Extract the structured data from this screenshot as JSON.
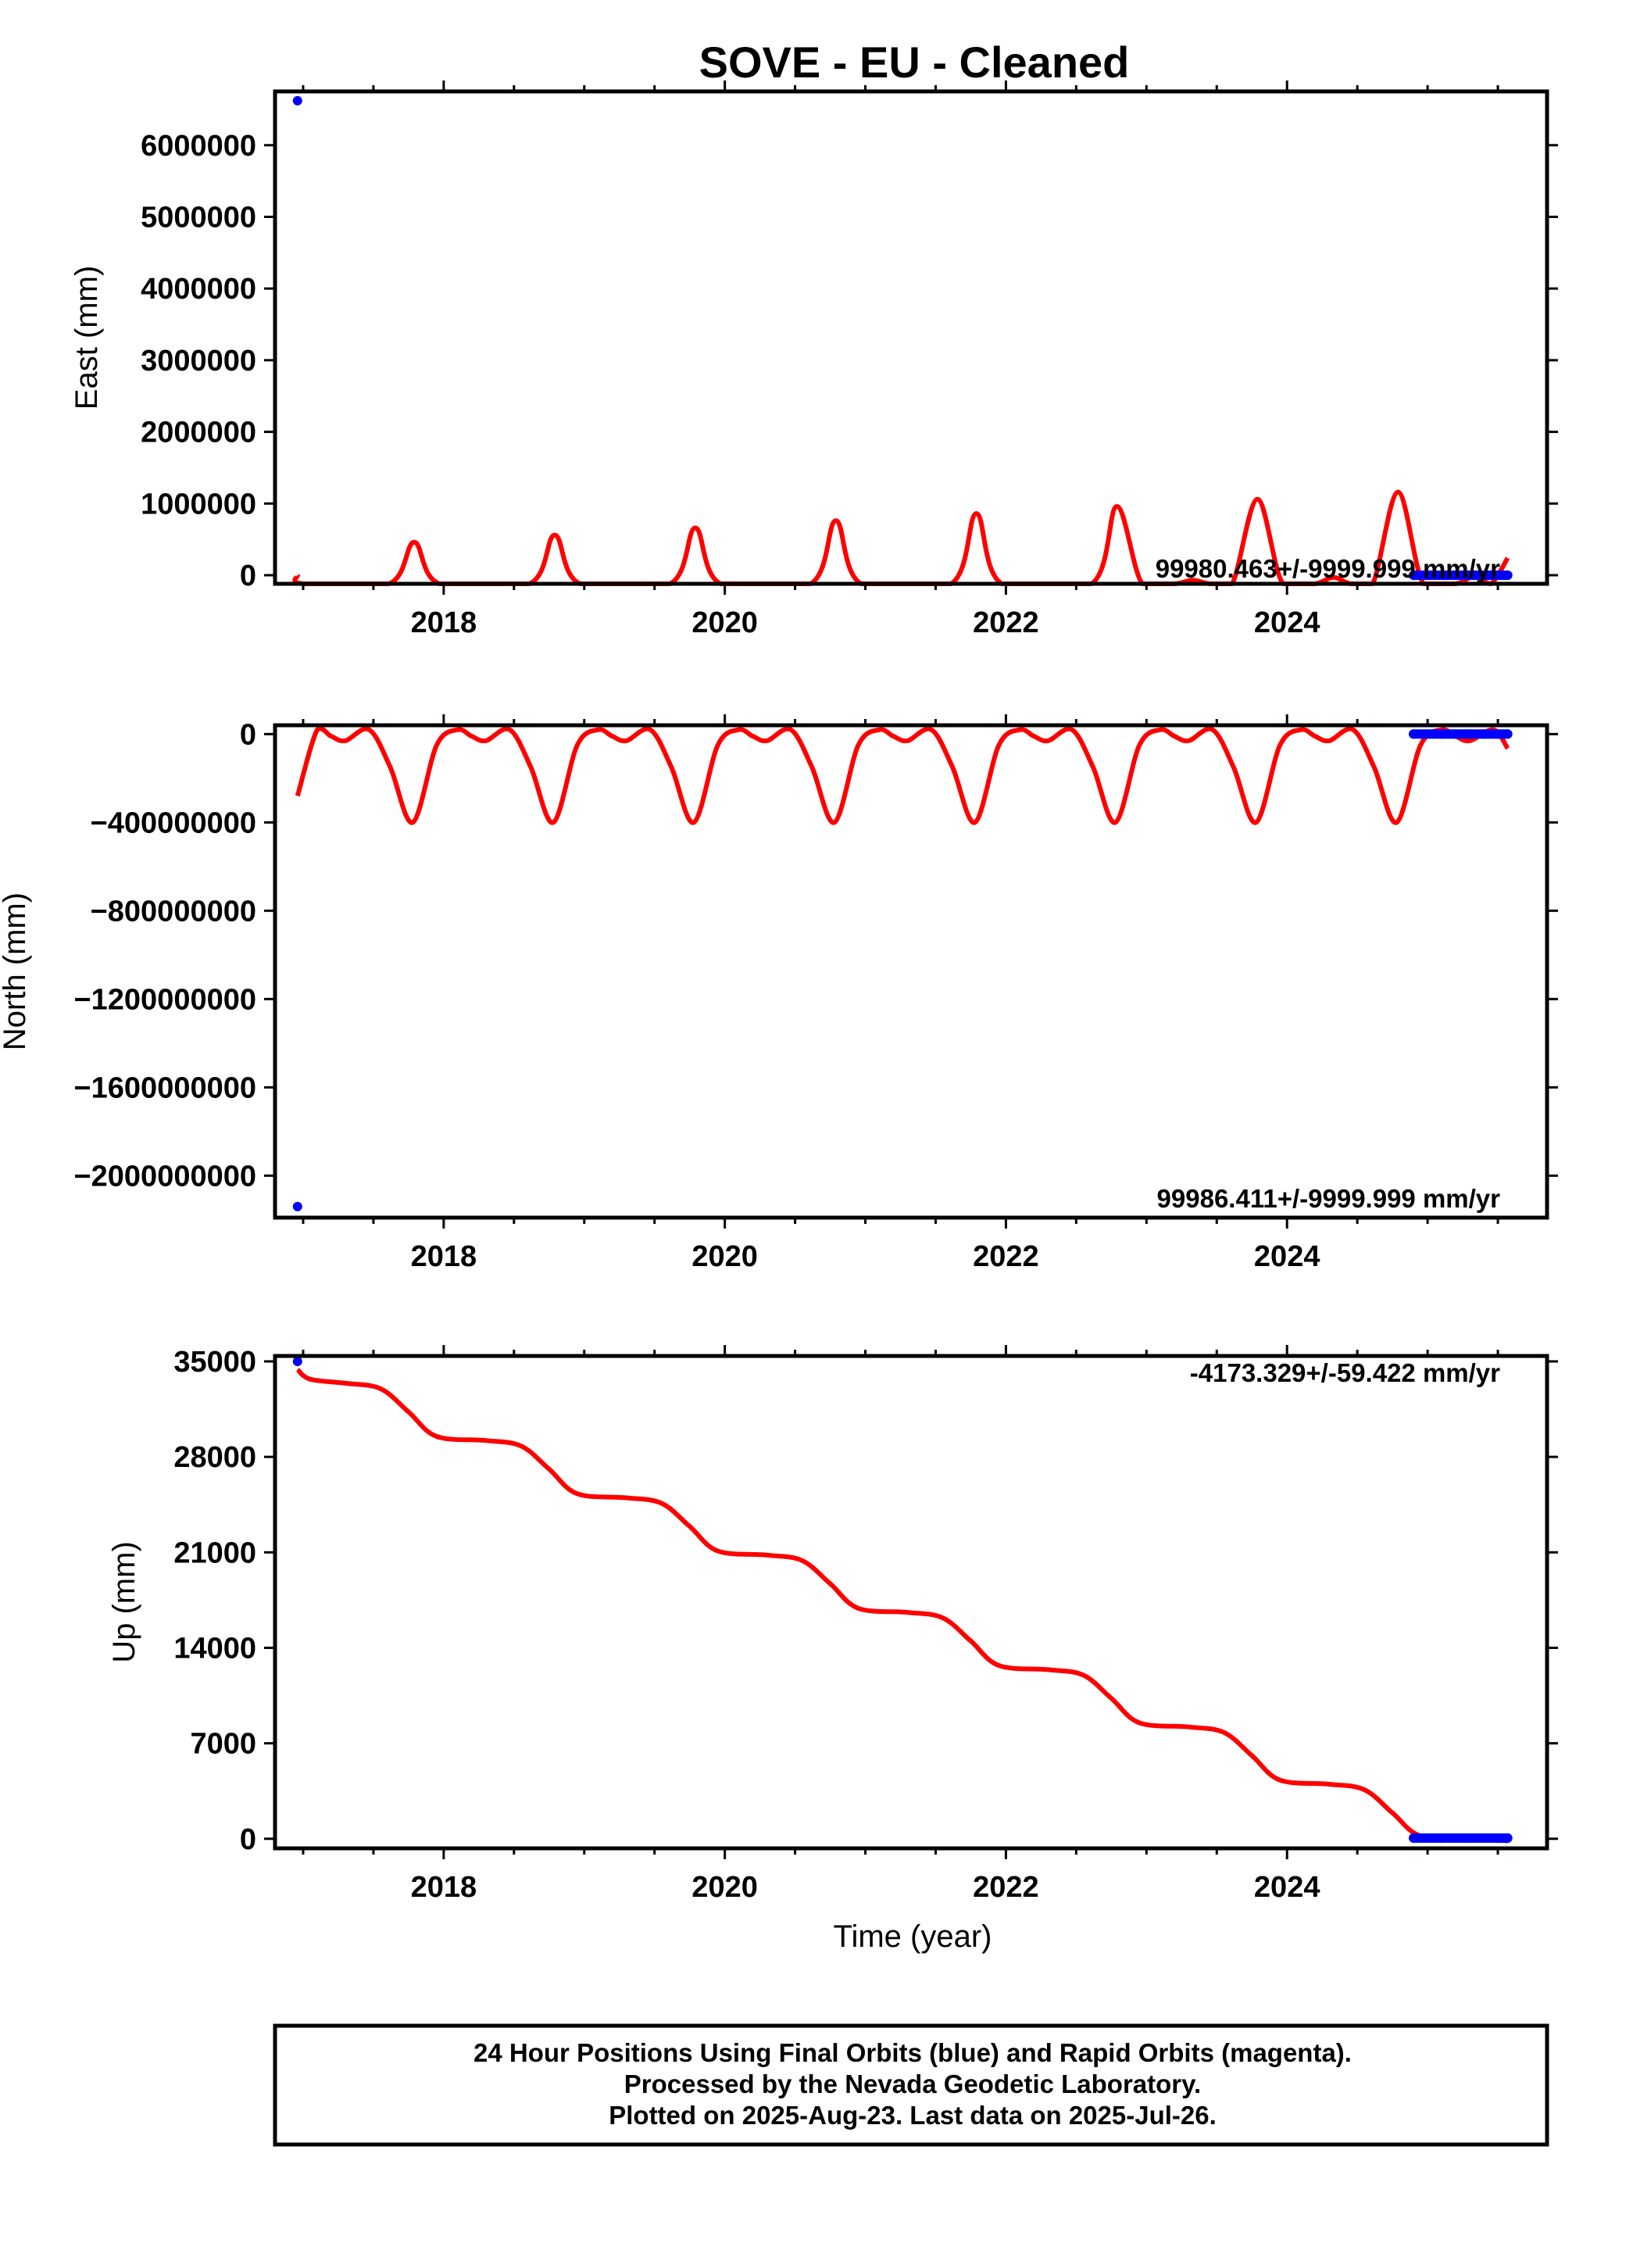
{
  "title": "SOVE  - EU - Cleaned",
  "colors": {
    "final_orbits": "#0000ff",
    "model": "#ff0000",
    "frame": "#000000"
  },
  "chart_data": [
    {
      "type": "scatter",
      "ylabel": "East (mm)",
      "xlabel": "",
      "xlim": [
        2016.8,
        2025.85
      ],
      "ylim": [
        -120000,
        6750000
      ],
      "yticks": [
        0,
        1000000,
        2000000,
        3000000,
        4000000,
        5000000,
        6000000
      ],
      "ytick_labels": [
        "0",
        "1000000",
        "2000000",
        "3000000",
        "4000000",
        "5000000",
        "6000000"
      ],
      "xticks": [
        2018,
        2020,
        2022,
        2024
      ],
      "xtick_labels": [
        "2018",
        "2020",
        "2022",
        "2024"
      ],
      "rate_label": "99980.463+/-9999.999 mm/yr",
      "series": [
        {
          "kind": "points",
          "x": [
            2016.96,
            2024.9,
            2025.0,
            2025.1,
            2025.2,
            2025.3,
            2025.4,
            2025.5,
            2025.57
          ],
          "y": [
            6620000,
            0,
            0,
            0,
            0,
            0,
            0,
            0,
            0
          ]
        },
        {
          "kind": "model",
          "x": [
            2016.96,
            2017.0,
            2017.61,
            2017.79,
            2017.97,
            2018.61,
            2018.79,
            2018.97,
            2019.61,
            2019.79,
            2019.97,
            2020.61,
            2020.79,
            2020.97,
            2021.61,
            2021.79,
            2021.97,
            2022.61,
            2022.79,
            2022.97,
            2023.2,
            2023.33,
            2023.45,
            2023.61,
            2023.79,
            2023.97,
            2024.2,
            2024.33,
            2024.45,
            2024.61,
            2024.79,
            2024.97,
            2025.2,
            2025.33,
            2025.45,
            2025.57
          ],
          "y": [
            0,
            -120000,
            -120000,
            460000,
            -120000,
            -120000,
            560000,
            -120000,
            -120000,
            660000,
            -120000,
            -120000,
            760000,
            -120000,
            -120000,
            860000,
            -120000,
            -120000,
            960000,
            -120000,
            -120000,
            -70000,
            -120000,
            -120000,
            1060000,
            -120000,
            -120000,
            -30000,
            -120000,
            -120000,
            1160000,
            -120000,
            -120000,
            -20000,
            -120000,
            240000
          ]
        }
      ]
    },
    {
      "type": "scatter",
      "ylabel": "North (mm)",
      "xlabel": "",
      "xlim": [
        2016.8,
        2025.85
      ],
      "ylim": [
        -2190000000,
        40000000
      ],
      "yticks": [
        0,
        -400000000,
        -800000000,
        -1200000000,
        -1600000000,
        -2000000000
      ],
      "ytick_labels": [
        "0",
        "−400000000",
        "−800000000",
        "−1200000000",
        "−1600000000",
        "−2000000000"
      ],
      "xticks": [
        2018,
        2020,
        2022,
        2024
      ],
      "xtick_labels": [
        "2018",
        "2020",
        "2022",
        "2024"
      ],
      "rate_label": "99986.411+/-9999.999 mm/yr",
      "series": [
        {
          "kind": "points",
          "x": [
            2016.96,
            2024.9,
            2025.0,
            2025.1,
            2025.2,
            2025.3,
            2025.4,
            2025.5,
            2025.57
          ],
          "y": [
            -2140000000,
            0,
            0,
            0,
            0,
            0,
            0,
            0,
            0
          ]
        },
        {
          "kind": "model",
          "x": [
            2016.96,
            2017.1,
            2017.2,
            2017.3,
            2017.47,
            2017.62,
            2017.78,
            2017.95,
            2018.1,
            2018.2,
            2018.3,
            2018.47,
            2018.62,
            2018.78,
            2018.95,
            2019.1,
            2019.2,
            2019.3,
            2019.47,
            2019.62,
            2019.78,
            2019.95,
            2020.1,
            2020.2,
            2020.3,
            2020.47,
            2020.62,
            2020.78,
            2020.95,
            2021.1,
            2021.2,
            2021.3,
            2021.47,
            2021.62,
            2021.78,
            2021.95,
            2022.1,
            2022.2,
            2022.3,
            2022.47,
            2022.62,
            2022.78,
            2022.95,
            2023.1,
            2023.2,
            2023.3,
            2023.47,
            2023.62,
            2023.78,
            2023.95,
            2024.1,
            2024.2,
            2024.3,
            2024.47,
            2024.62,
            2024.78,
            2024.95,
            2025.1,
            2025.2,
            2025.3,
            2025.47,
            2025.57
          ],
          "y": [
            -280000000,
            20000000,
            -10000000,
            -30000000,
            20000000,
            -150000000,
            -400000000,
            -50000000,
            20000000,
            -10000000,
            -30000000,
            20000000,
            -150000000,
            -400000000,
            -50000000,
            20000000,
            -10000000,
            -30000000,
            20000000,
            -150000000,
            -400000000,
            -50000000,
            20000000,
            -10000000,
            -30000000,
            20000000,
            -150000000,
            -400000000,
            -50000000,
            20000000,
            -10000000,
            -30000000,
            20000000,
            -150000000,
            -400000000,
            -50000000,
            20000000,
            -10000000,
            -30000000,
            20000000,
            -150000000,
            -400000000,
            -50000000,
            20000000,
            -10000000,
            -30000000,
            20000000,
            -150000000,
            -400000000,
            -50000000,
            20000000,
            -10000000,
            -30000000,
            20000000,
            -150000000,
            -400000000,
            -50000000,
            20000000,
            -10000000,
            -30000000,
            20000000,
            -65000000
          ]
        }
      ]
    },
    {
      "type": "scatter",
      "ylabel": "Up (mm)",
      "xlabel": "Time (year)",
      "xlim": [
        2016.8,
        2025.85
      ],
      "ylim": [
        -700,
        35400
      ],
      "yticks": [
        0,
        7000,
        14000,
        21000,
        28000,
        35000
      ],
      "ytick_labels": [
        "0",
        "7000",
        "14000",
        "21000",
        "28000",
        "35000"
      ],
      "xticks": [
        2018,
        2020,
        2022,
        2024
      ],
      "xtick_labels": [
        "2018",
        "2020",
        "2022",
        "2024"
      ],
      "rate_label": "-4173.329+/-59.422 mm/yr",
      "series": [
        {
          "kind": "points",
          "x": [
            2016.96,
            2024.9,
            2025.0,
            2025.1,
            2025.2,
            2025.3,
            2025.4,
            2025.5,
            2025.57
          ],
          "y": [
            35000,
            50,
            50,
            50,
            50,
            50,
            50,
            50,
            50
          ]
        },
        {
          "kind": "model",
          "x": [
            2016.96,
            2017.05,
            2017.3,
            2017.55,
            2017.75,
            2017.95,
            2018.3,
            2018.55,
            2018.75,
            2018.95,
            2019.3,
            2019.55,
            2019.75,
            2019.95,
            2020.3,
            2020.55,
            2020.75,
            2020.95,
            2021.3,
            2021.55,
            2021.75,
            2021.95,
            2022.3,
            2022.55,
            2022.75,
            2022.95,
            2023.3,
            2023.55,
            2023.75,
            2023.95,
            2024.3,
            2024.55,
            2024.75,
            2024.95,
            2025.3,
            2025.57
          ],
          "y": [
            34400,
            33700,
            33400,
            33000,
            31300,
            29500,
            29200,
            28800,
            27100,
            25300,
            25000,
            24600,
            22900,
            21100,
            20800,
            20400,
            18700,
            16900,
            16600,
            16200,
            14500,
            12700,
            12400,
            12000,
            10300,
            8500,
            8200,
            7800,
            6100,
            4300,
            4000,
            3600,
            1900,
            200,
            0,
            -150
          ]
        }
      ]
    }
  ],
  "footer": {
    "line1": "24 Hour Positions Using Final Orbits (blue) and Rapid Orbits (magenta).",
    "line2": "Processed by the Nevada Geodetic Laboratory.",
    "line3": "Plotted on 2025-Aug-23. Last data on 2025-Jul-26."
  }
}
